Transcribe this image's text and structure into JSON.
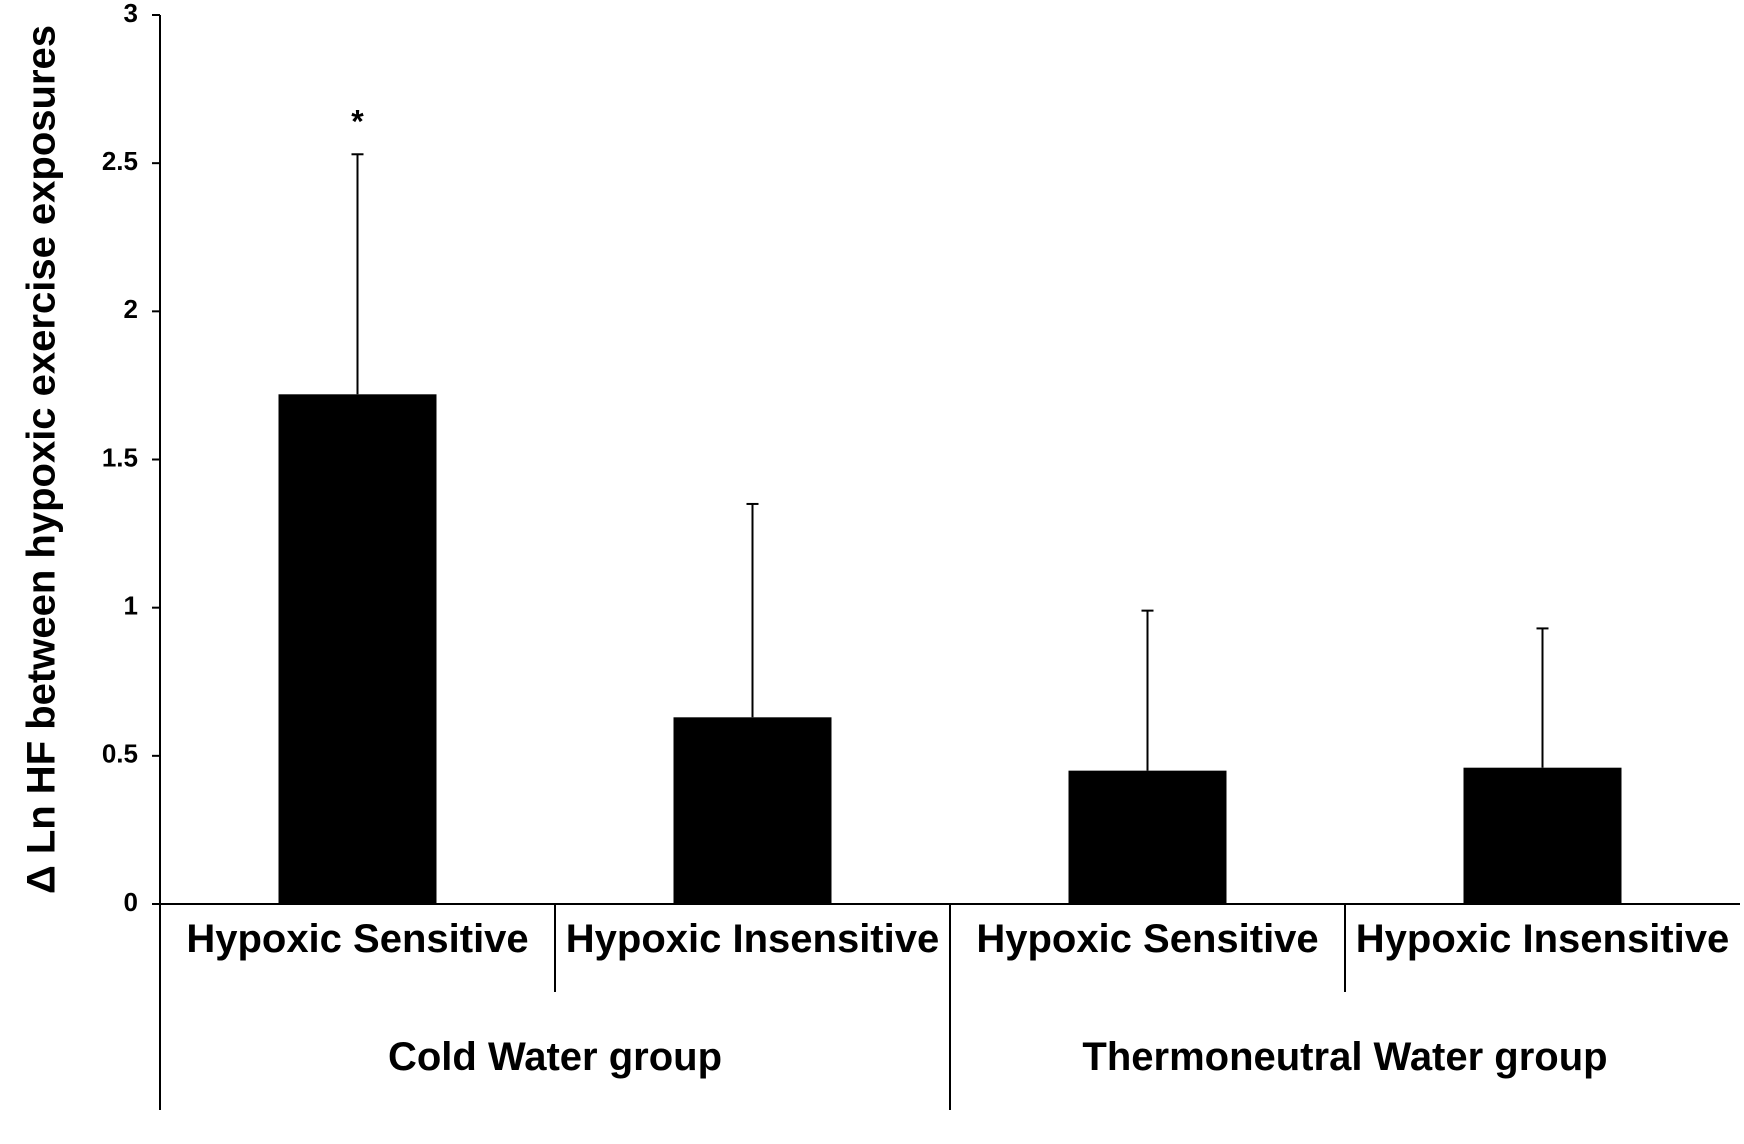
{
  "chart_data": {
    "type": "bar",
    "title": "",
    "xlabel": "",
    "ylabel": "Δ Ln HF between hypoxic exercise exposures",
    "ylim": [
      0,
      3
    ],
    "yticks": [
      0,
      0.5,
      1,
      1.5,
      2,
      2.5,
      3
    ],
    "ytick_labels": [
      "0",
      "0.5",
      "1",
      "1.5",
      "2",
      "2.5",
      "3"
    ],
    "grid": false,
    "legend": "none",
    "categories": [
      "Hypoxic Sensitive",
      "Hypoxic Insensitive",
      "Hypoxic Sensitive",
      "Hypoxic Insensitive"
    ],
    "values": [
      1.72,
      0.63,
      0.45,
      0.46
    ],
    "error_upper": [
      0.81,
      0.72,
      0.54,
      0.47
    ],
    "groups": [
      {
        "label": "Cold Water group",
        "categories": [
          0,
          1
        ]
      },
      {
        "label": "Thermoneutral Water group",
        "categories": [
          2,
          3
        ]
      }
    ],
    "annotations": [
      {
        "category": 0,
        "text": "*"
      }
    ],
    "bar_color": "#000000"
  }
}
